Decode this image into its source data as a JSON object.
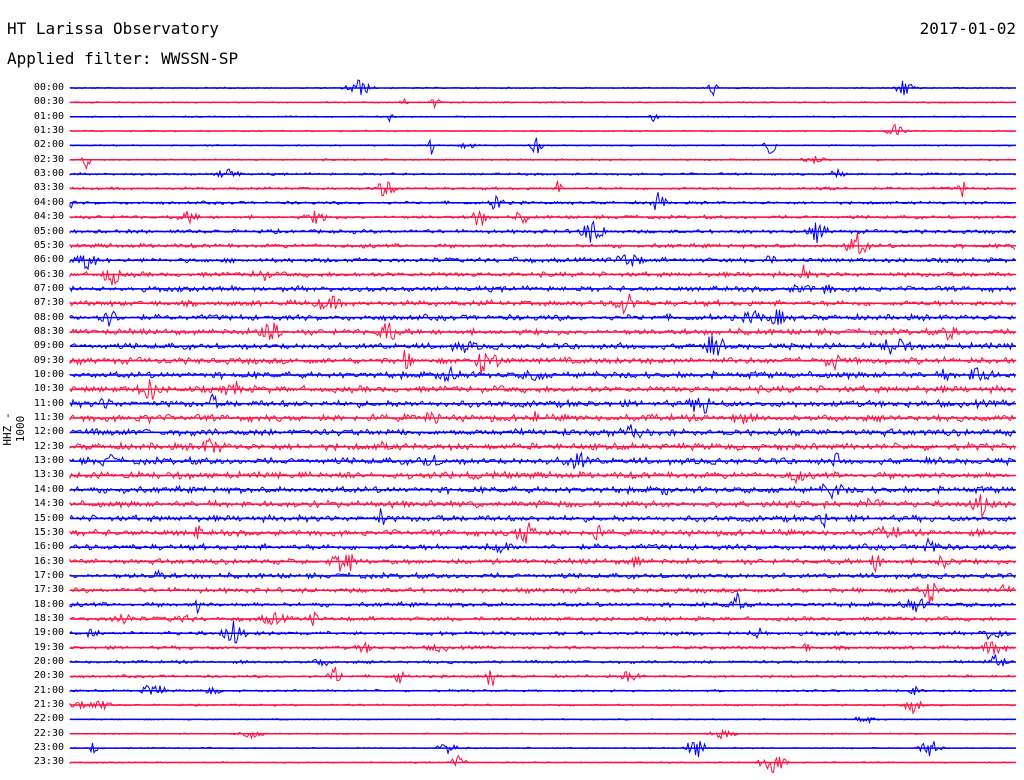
{
  "header": {
    "station": "HT Larissa Observatory",
    "date": "2017-01-02",
    "filter": "Applied filter: WWSSN-SP"
  },
  "channel_label": "HHZ - 1000",
  "colors": {
    "even": "#0000ff",
    "odd": "#ff1144",
    "text": "#000000"
  },
  "rows": [
    "00:00",
    "00:30",
    "01:00",
    "01:30",
    "02:00",
    "02:30",
    "03:00",
    "03:30",
    "04:00",
    "04:30",
    "05:00",
    "05:30",
    "06:00",
    "06:30",
    "07:00",
    "07:30",
    "08:00",
    "08:30",
    "09:00",
    "09:30",
    "10:00",
    "10:30",
    "11:00",
    "11:30",
    "12:00",
    "12:30",
    "13:00",
    "13:30",
    "14:00",
    "14:30",
    "15:00",
    "15:30",
    "16:00",
    "16:30",
    "17:00",
    "17:30",
    "18:00",
    "18:30",
    "19:00",
    "19:30",
    "20:00",
    "20:30",
    "21:00",
    "21:30",
    "22:00",
    "22:30",
    "23:00",
    "23:30"
  ]
}
